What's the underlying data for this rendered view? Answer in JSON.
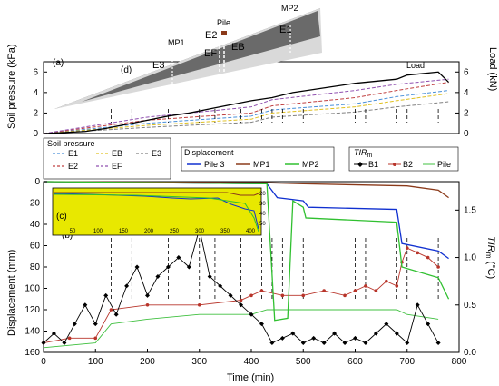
{
  "chart_data": [
    {
      "type": "line",
      "panel_label": "(a)",
      "ylabel_left": "Soil pressure (kPa)",
      "ylabel_right": "Load (kN)",
      "xlim": [
        0,
        800
      ],
      "ylim_left": [
        0,
        7
      ],
      "ylim_right": [
        0,
        7
      ],
      "yticks_left": [
        "0",
        "2",
        "4",
        "6"
      ],
      "yticks_right": [
        "0",
        "2",
        "4",
        "6"
      ],
      "annotation": "Load",
      "load_series": {
        "name": "Load",
        "color": "#000000",
        "x": [
          0,
          40,
          80,
          120,
          160,
          200,
          240,
          280,
          320,
          360,
          400,
          440,
          480,
          520,
          560,
          600,
          640,
          680,
          700,
          720,
          760,
          780
        ],
        "y": [
          0,
          0.1,
          0.2,
          0.5,
          0.9,
          1.3,
          1.7,
          2.0,
          2.4,
          2.8,
          3.2,
          3.5,
          4.0,
          4.3,
          4.6,
          4.9,
          5.1,
          5.3,
          5.7,
          5.8,
          6.0,
          5.0
        ]
      },
      "pressure_series": [
        {
          "name": "E1",
          "color": "#4a90d9",
          "x": [
            0,
            200,
            400,
            440,
            600,
            680,
            780
          ],
          "y": [
            0,
            1.0,
            1.7,
            2.3,
            2.9,
            3.6,
            4.2
          ]
        },
        {
          "name": "E2",
          "color": "#c04040",
          "x": [
            0,
            200,
            400,
            440,
            600,
            680,
            780
          ],
          "y": [
            0,
            1.3,
            2.0,
            2.7,
            3.5,
            4.2,
            5.0
          ]
        },
        {
          "name": "EB",
          "color": "#e0c020",
          "x": [
            0,
            200,
            400,
            440,
            600,
            680,
            780
          ],
          "y": [
            0,
            0.8,
            1.4,
            2.0,
            2.6,
            3.2,
            3.9
          ]
        },
        {
          "name": "EF",
          "color": "#9050b0",
          "x": [
            0,
            200,
            400,
            440,
            600,
            680,
            780
          ],
          "y": [
            0,
            1.6,
            2.6,
            3.3,
            4.2,
            4.8,
            5.3
          ]
        },
        {
          "name": "E3",
          "color": "#808080",
          "x": [
            0,
            200,
            400,
            440,
            600,
            680,
            780
          ],
          "y": [
            0,
            0.6,
            1.1,
            1.6,
            2.1,
            2.6,
            3.1
          ]
        }
      ]
    },
    {
      "type": "line",
      "panel_label": "(b)",
      "xlabel": "Time (min)",
      "ylabel_left": "Displacement (mm)",
      "ylabel_right_main": "TIR",
      "ylabel_right_sub": "m",
      "ylabel_right_unit": " (°C)",
      "xlim": [
        0,
        800
      ],
      "ylim_left": [
        0,
        160
      ],
      "ylim_right": [
        0,
        1.8
      ],
      "xticks": [
        "0",
        "100",
        "200",
        "300",
        "400",
        "500",
        "600",
        "700",
        "800"
      ],
      "yticks_left": [
        "0",
        "20",
        "40",
        "60",
        "80",
        "100",
        "120",
        "140",
        "160"
      ],
      "yticks_right": [
        "0.0",
        "0.5",
        "1.0",
        "1.5"
      ],
      "displacement_series": [
        {
          "name": "Pile 3",
          "color": "#1030d0",
          "x": [
            0,
            430,
            450,
            500,
            510,
            680,
            690,
            760,
            780
          ],
          "y": [
            0,
            2,
            15,
            18,
            24,
            26,
            58,
            65,
            72
          ]
        },
        {
          "name": "MP1",
          "color": "#8b3a1a",
          "x": [
            0,
            430,
            500,
            700,
            760,
            780
          ],
          "y": [
            0,
            1,
            2,
            4,
            8,
            15
          ]
        },
        {
          "name": "MP2",
          "color": "#30c030",
          "x": [
            0,
            430,
            445,
            470,
            480,
            500,
            505,
            680,
            690,
            760,
            780
          ],
          "y": [
            0,
            2,
            130,
            128,
            18,
            24,
            34,
            38,
            80,
            90,
            110
          ]
        }
      ],
      "tir_series": [
        {
          "name": "B1",
          "color": "#000000",
          "marker": "diamond",
          "x": [
            0,
            20,
            40,
            60,
            80,
            100,
            120,
            140,
            160,
            180,
            200,
            220,
            240,
            260,
            280,
            300,
            320,
            340,
            360,
            380,
            400,
            420,
            440,
            460,
            480,
            500,
            520,
            540,
            560,
            580,
            600,
            620,
            640,
            660,
            680,
            700,
            720,
            740,
            760
          ],
          "y": [
            0.1,
            0.2,
            0.1,
            0.3,
            0.5,
            0.3,
            0.6,
            0.4,
            0.7,
            0.9,
            0.6,
            0.8,
            0.9,
            1.0,
            0.9,
            1.3,
            0.8,
            0.7,
            0.6,
            0.5,
            0.4,
            0.3,
            0.1,
            0.15,
            0.2,
            0.1,
            0.15,
            0.1,
            0.2,
            0.1,
            0.15,
            0.1,
            0.2,
            0.3,
            0.2,
            0.1,
            0.5,
            0.3,
            0.1
          ]
        },
        {
          "name": "B2",
          "color": "#b8342a",
          "marker": "circle",
          "x": [
            0,
            50,
            100,
            130,
            200,
            300,
            380,
            400,
            420,
            460,
            500,
            540,
            580,
            600,
            620,
            640,
            660,
            680,
            690,
            700,
            720,
            740,
            760
          ],
          "y": [
            0.1,
            0.15,
            0.15,
            0.45,
            0.5,
            0.5,
            0.55,
            0.6,
            0.65,
            0.6,
            0.6,
            0.65,
            0.6,
            0.65,
            0.7,
            0.65,
            0.75,
            0.7,
            0.95,
            1.1,
            1.05,
            1.0,
            0.9
          ]
        },
        {
          "name": "Pile",
          "color": "#40c040",
          "marker": "none",
          "x": [
            0,
            100,
            130,
            200,
            300,
            400,
            430,
            500,
            600,
            680,
            700,
            760
          ],
          "y": [
            0.05,
            0.1,
            0.3,
            0.35,
            0.4,
            0.4,
            0.45,
            0.45,
            0.45,
            0.45,
            0.4,
            0.35
          ]
        }
      ],
      "event_times_min": [
        130,
        170,
        240,
        300,
        330,
        380,
        420,
        440,
        460,
        500,
        600,
        620,
        680,
        700,
        760
      ]
    }
  ],
  "inset_c": {
    "panel_label": "(c)",
    "xticks": [
      "50",
      "100",
      "150",
      "200",
      "250",
      "300",
      "350",
      "400"
    ],
    "yticks": [
      "20",
      "30",
      "40",
      "50"
    ],
    "background": "#e8e800"
  },
  "inset_d": {
    "panel_label": "(d)",
    "labels": [
      "Pile",
      "MP2",
      "MP1",
      "E2",
      "E1",
      "E3",
      "EF",
      "EB"
    ]
  },
  "legends": {
    "soil_title": "Soil pressure",
    "soil_items": [
      "E1",
      "EB",
      "E3",
      "E2",
      "EF"
    ],
    "disp_title": "Displacement",
    "disp_items": [
      "Pile 3",
      "MP1",
      "MP2"
    ],
    "tir_title_main": "TIR",
    "tir_title_sub": "m",
    "tir_items": [
      "B1",
      "B2",
      "Pile"
    ]
  }
}
